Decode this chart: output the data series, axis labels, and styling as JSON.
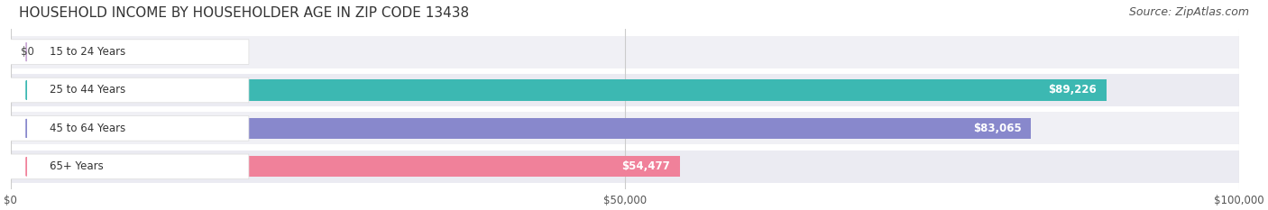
{
  "title": "HOUSEHOLD INCOME BY HOUSEHOLDER AGE IN ZIP CODE 13438",
  "source": "Source: ZipAtlas.com",
  "categories": [
    "15 to 24 Years",
    "25 to 44 Years",
    "45 to 64 Years",
    "65+ Years"
  ],
  "values": [
    0,
    89226,
    83065,
    54477
  ],
  "labels": [
    "$0",
    "$89,226",
    "$83,065",
    "$54,477"
  ],
  "bar_colors": [
    "#c9a8d4",
    "#3cb8b2",
    "#8888cc",
    "#f0819a"
  ],
  "bg_row_colors": [
    "#f5f5f8",
    "#eaeaf0"
  ],
  "xlim": [
    0,
    100000
  ],
  "xticks": [
    0,
    50000,
    100000
  ],
  "xtick_labels": [
    "$0",
    "$50,000",
    "$100,000"
  ],
  "title_fontsize": 11,
  "source_fontsize": 9,
  "bar_height": 0.55,
  "background_color": "#ffffff"
}
